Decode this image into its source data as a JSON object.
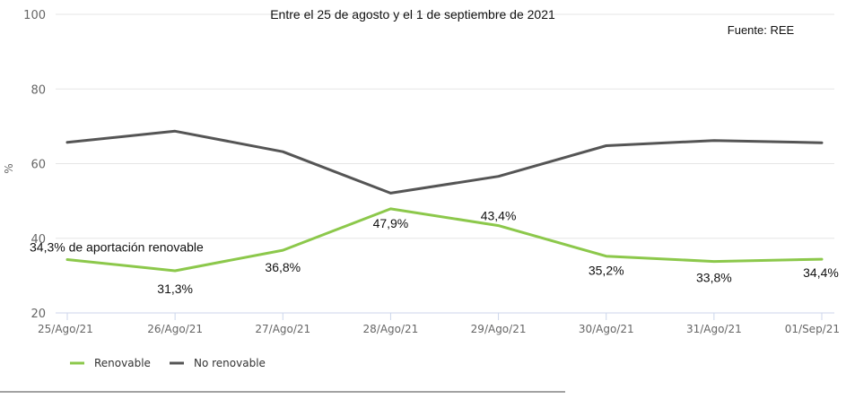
{
  "chart_data": {
    "type": "line",
    "title": "Entre el 25 de agosto y el 1 de septiembre de 2021",
    "source": "Fuente: REE",
    "ylabel": "%",
    "ylim": [
      20,
      100
    ],
    "yticks": [
      20,
      40,
      60,
      80,
      100
    ],
    "grid": true,
    "legend_position": "bottom-left",
    "categories": [
      "25/Ago/21",
      "26/Ago/21",
      "27/Ago/21",
      "28/Ago/21",
      "29/Ago/21",
      "30/Ago/21",
      "31/Ago/21",
      "01/Sep/21"
    ],
    "series": [
      {
        "name": "Renovable",
        "color": "#8cc84b",
        "values": [
          34.3,
          31.3,
          36.8,
          47.9,
          43.4,
          35.2,
          33.8,
          34.4
        ],
        "labels": [
          "34,3% de aportación renovable",
          "31,3%",
          "36,8%",
          "47,9%",
          "43,4%",
          "35,2%",
          "33,8%",
          "34,4%"
        ]
      },
      {
        "name": "No renovable",
        "color": "#555555",
        "values": [
          65.7,
          68.7,
          63.2,
          52.1,
          56.6,
          64.8,
          66.2,
          65.6
        ]
      }
    ]
  }
}
